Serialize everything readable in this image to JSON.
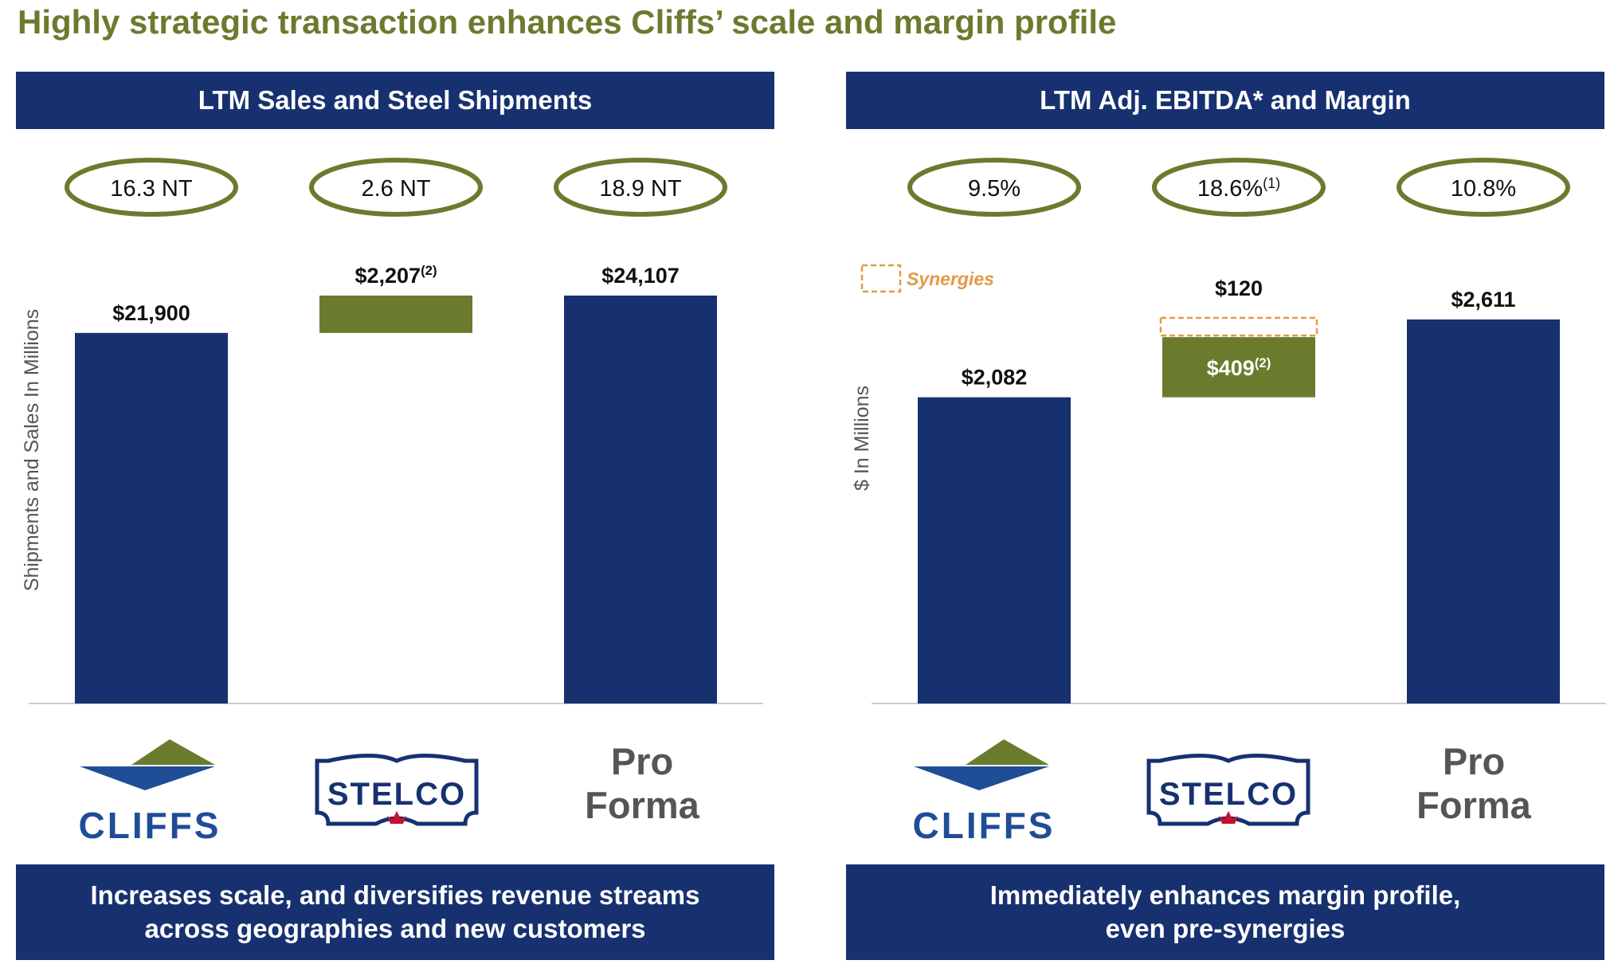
{
  "page_title": "Highly strategic transaction enhances Cliffs’ scale and margin profile",
  "colors": {
    "navy": "#173170",
    "olive": "#6b7b2e",
    "synergy_orange": "#e39a44",
    "title_olive": "#6b7b2e"
  },
  "chart_data": [
    {
      "type": "bar",
      "title": "LTM Sales and Steel Shipments",
      "ylabel": "Shipments and Sales In Millions",
      "ylim": [
        0,
        24107
      ],
      "categories": [
        "Cliffs",
        "Stelco",
        "Pro Forma"
      ],
      "series": [
        {
          "name": "Sales",
          "values": [
            21900,
            2207,
            24107
          ],
          "bar_kind": [
            "base",
            "increment",
            "total"
          ],
          "labels": [
            "$21,900",
            "$2,207",
            "$24,107"
          ],
          "label_sups": [
            "",
            "(2)",
            ""
          ]
        }
      ],
      "ovals": [
        "16.3 NT",
        "2.6 NT",
        "18.9 NT"
      ],
      "oval_sups": [
        "",
        "",
        ""
      ],
      "footer": [
        "Increases scale, and diversifies revenue streams",
        "across geographies and new customers"
      ]
    },
    {
      "type": "bar",
      "title": "LTM Adj. EBITDA* and Margin",
      "ylabel": "$ In Millions",
      "ylim": [
        0,
        2611
      ],
      "categories": [
        "Cliffs",
        "Stelco",
        "Pro Forma"
      ],
      "series": [
        {
          "name": "Adj. EBITDA",
          "values": [
            2082,
            409,
            2611
          ],
          "bar_kind": [
            "base",
            "increment",
            "total"
          ],
          "labels": [
            "$2,082",
            "$409",
            "$2,611"
          ],
          "label_sups": [
            "",
            "(2)",
            ""
          ]
        },
        {
          "name": "Synergies",
          "values": [
            0,
            120,
            0
          ],
          "labels": [
            "",
            "$120",
            ""
          ]
        }
      ],
      "legend": {
        "label": "Synergies",
        "position": "top-left"
      },
      "ovals": [
        "9.5%",
        "18.6%",
        "10.8%"
      ],
      "oval_sups": [
        "",
        "(1)",
        ""
      ],
      "footer": [
        "Immediately enhances margin profile,",
        "even pre-synergies"
      ]
    }
  ],
  "logos": {
    "cliffs": "CLIFFS",
    "stelco": "STELCO",
    "pro_forma": [
      "Pro",
      "Forma"
    ]
  }
}
